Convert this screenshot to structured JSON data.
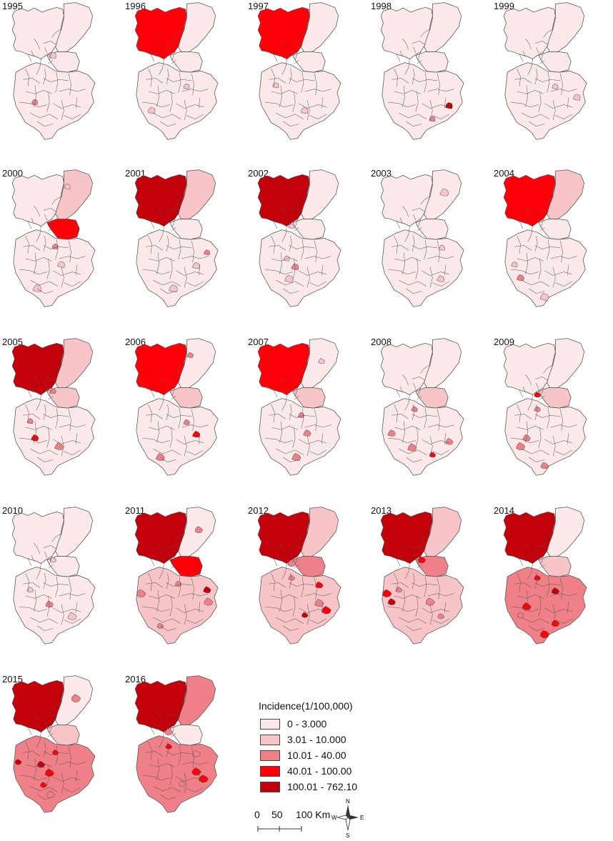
{
  "years": [
    "1995",
    "1996",
    "1997",
    "1998",
    "1999",
    "2000",
    "2001",
    "2002",
    "2003",
    "2004",
    "2005",
    "2006",
    "2007",
    "2008",
    "2009",
    "2010",
    "2011",
    "2012",
    "2013",
    "2014",
    "2015",
    "2016"
  ],
  "colors": [
    "#fbe9ea",
    "#f7c5c8",
    "#f08088",
    "#ff0008",
    "#c4000a"
  ],
  "legend": {
    "title": "Incidence(1/100,000)",
    "classes": [
      "0 - 3.000",
      "3.01 - 10.000",
      "10.01 - 40.00",
      "40.01 - 100.00",
      "100.01 - 762.10"
    ]
  },
  "maps": [
    {
      "year": "1995",
      "north": 0,
      "east": 0,
      "mid": 0,
      "south": 0,
      "spots": [
        [
          9,
          2
        ],
        [
          22,
          1
        ]
      ]
    },
    {
      "year": "1996",
      "north": 3,
      "east": 0,
      "mid": 0,
      "south": 0,
      "spots": [
        [
          5,
          1
        ],
        [
          14,
          1
        ]
      ]
    },
    {
      "year": "1997",
      "north": 3,
      "east": 0,
      "mid": 0,
      "south": 0,
      "spots": [
        [
          3,
          1
        ],
        [
          16,
          1
        ]
      ]
    },
    {
      "year": "1998",
      "north": 0,
      "east": 0,
      "mid": 0,
      "south": 0,
      "spots": [
        [
          20,
          2
        ],
        [
          26,
          4
        ]
      ]
    },
    {
      "year": "1999",
      "north": 0,
      "east": 0,
      "mid": 0,
      "south": 0,
      "spots": [
        [
          5,
          1
        ],
        [
          13,
          1
        ]
      ]
    },
    {
      "year": "2000",
      "north": 0,
      "east": 1,
      "mid": 3,
      "south": 0,
      "spots": [
        [
          2,
          2
        ],
        [
          11,
          1
        ],
        [
          18,
          1
        ],
        [
          23,
          1
        ]
      ]
    },
    {
      "year": "2001",
      "north": 4,
      "east": 1,
      "mid": 0,
      "south": 0,
      "spots": [
        [
          7,
          2
        ],
        [
          12,
          1
        ],
        [
          19,
          1
        ]
      ]
    },
    {
      "year": "2002",
      "north": 4,
      "east": 0,
      "mid": 0,
      "south": 0,
      "spots": [
        [
          4,
          1
        ],
        [
          10,
          2
        ],
        [
          15,
          1
        ],
        [
          21,
          1
        ]
      ]
    },
    {
      "year": "2003",
      "north": 0,
      "east": 0,
      "mid": 0,
      "south": 0,
      "spots": [
        [
          6,
          1
        ],
        [
          17,
          1
        ],
        [
          24,
          1
        ]
      ]
    },
    {
      "year": "2004",
      "north": 3,
      "east": 1,
      "mid": 0,
      "south": 0,
      "spots": [
        [
          8,
          1
        ],
        [
          14,
          2
        ],
        [
          25,
          1
        ]
      ]
    },
    {
      "year": "2005",
      "north": 4,
      "east": 1,
      "mid": 1,
      "south": 0,
      "spots": [
        [
          3,
          2
        ],
        [
          9,
          3
        ],
        [
          16,
          2
        ],
        [
          22,
          2
        ]
      ]
    },
    {
      "year": "2006",
      "north": 3,
      "east": 0,
      "mid": 1,
      "south": 0,
      "spots": [
        [
          5,
          2
        ],
        [
          12,
          3
        ],
        [
          18,
          2
        ],
        [
          23,
          2
        ]
      ]
    },
    {
      "year": "2007",
      "north": 3,
      "east": 0,
      "mid": 1,
      "south": 0,
      "spots": [
        [
          2,
          2
        ],
        [
          11,
          2
        ],
        [
          19,
          2
        ],
        [
          24,
          1
        ]
      ]
    },
    {
      "year": "2008",
      "north": 0,
      "east": 0,
      "mid": 1,
      "south": 0,
      "spots": [
        [
          1,
          2
        ],
        [
          8,
          2
        ],
        [
          15,
          2
        ],
        [
          20,
          3
        ],
        [
          26,
          2
        ]
      ]
    },
    {
      "year": "2009",
      "north": 0,
      "east": 0,
      "mid": 1,
      "south": 0,
      "spots": [
        [
          1,
          2
        ],
        [
          9,
          2
        ],
        [
          14,
          2
        ],
        [
          21,
          3
        ],
        [
          25,
          2
        ]
      ]
    },
    {
      "year": "2010",
      "north": 0,
      "east": 0,
      "mid": 0,
      "south": 0,
      "spots": [
        [
          3,
          1
        ],
        [
          10,
          2
        ],
        [
          17,
          1
        ],
        [
          22,
          1
        ]
      ]
    },
    {
      "year": "2011",
      "north": 4,
      "east": 0,
      "mid": 3,
      "south": 1,
      "spots": [
        [
          2,
          2
        ],
        [
          7,
          4
        ],
        [
          13,
          2
        ],
        [
          18,
          2
        ],
        [
          24,
          2
        ],
        [
          27,
          2
        ]
      ]
    },
    {
      "year": "2012",
      "north": 4,
      "east": 1,
      "mid": 2,
      "south": 1,
      "spots": [
        [
          1,
          2
        ],
        [
          6,
          3
        ],
        [
          12,
          2
        ],
        [
          16,
          4
        ],
        [
          21,
          2
        ],
        [
          26,
          3
        ]
      ]
    },
    {
      "year": "2013",
      "north": 4,
      "east": 1,
      "mid": 2,
      "south": 1,
      "spots": [
        [
          3,
          2
        ],
        [
          8,
          4
        ],
        [
          11,
          2
        ],
        [
          17,
          2
        ],
        [
          22,
          3
        ],
        [
          27,
          3
        ]
      ]
    },
    {
      "year": "2014",
      "north": 4,
      "east": 0,
      "mid": 1,
      "south": 2,
      "spots": [
        [
          1,
          3
        ],
        [
          5,
          4
        ],
        [
          9,
          3
        ],
        [
          14,
          2
        ],
        [
          20,
          3
        ],
        [
          25,
          3
        ]
      ]
    },
    {
      "year": "2015",
      "north": 4,
      "east": 0,
      "mid": 1,
      "south": 2,
      "spots": [
        [
          2,
          3
        ],
        [
          4,
          4
        ],
        [
          10,
          3
        ],
        [
          15,
          3
        ],
        [
          19,
          2
        ],
        [
          24,
          2
        ],
        [
          27,
          4
        ]
      ]
    },
    {
      "year": "2016",
      "north": 4,
      "east": 2,
      "mid": 0,
      "south": 2,
      "spots": [
        [
          1,
          3
        ],
        [
          6,
          2
        ],
        [
          12,
          3
        ],
        [
          16,
          2
        ],
        [
          21,
          2
        ],
        [
          26,
          3
        ]
      ]
    }
  ],
  "scale_bar": {
    "labels": [
      "0",
      "50",
      "100 Km"
    ]
  },
  "compass": {
    "n": "N",
    "s": "S",
    "e": "E",
    "w": "W"
  }
}
